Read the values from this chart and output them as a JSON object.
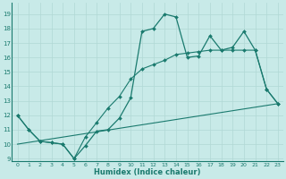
{
  "xlabel": "Humidex (Indice chaleur)",
  "xlim": [
    -0.5,
    23.5
  ],
  "ylim": [
    8.8,
    19.8
  ],
  "yticks": [
    9,
    10,
    11,
    12,
    13,
    14,
    15,
    16,
    17,
    18,
    19
  ],
  "xticks": [
    0,
    1,
    2,
    3,
    4,
    5,
    6,
    7,
    8,
    9,
    10,
    11,
    12,
    13,
    14,
    15,
    16,
    17,
    18,
    19,
    20,
    21,
    22,
    23
  ],
  "bg_color": "#c8eae8",
  "grid_color": "#b0d8d5",
  "line_color": "#1a7a6e",
  "line1_x": [
    0,
    1,
    2,
    3,
    4,
    5,
    6,
    7,
    8,
    9,
    10,
    11,
    12,
    13,
    14,
    15,
    16,
    17,
    18,
    19,
    20,
    21,
    22,
    23
  ],
  "line1_y": [
    12.0,
    11.0,
    10.2,
    10.1,
    10.0,
    9.0,
    9.9,
    10.9,
    11.0,
    11.8,
    13.2,
    17.8,
    18.0,
    19.0,
    18.8,
    16.0,
    16.1,
    17.5,
    16.5,
    16.7,
    17.8,
    16.5,
    13.8,
    12.8
  ],
  "line2_x": [
    0,
    23
  ],
  "line2_y": [
    10.0,
    12.8
  ],
  "line3_x": [
    0,
    1,
    2,
    3,
    4,
    5,
    6,
    7,
    8,
    9,
    10,
    11,
    12,
    13,
    14,
    15,
    16,
    17,
    18,
    19,
    20,
    21,
    22,
    23
  ],
  "line3_y": [
    12.0,
    11.0,
    10.2,
    10.1,
    10.0,
    9.0,
    10.5,
    11.5,
    12.5,
    13.3,
    14.5,
    15.2,
    15.5,
    15.8,
    16.2,
    16.3,
    16.4,
    16.5,
    16.5,
    16.5,
    16.5,
    16.5,
    13.8,
    12.8
  ]
}
